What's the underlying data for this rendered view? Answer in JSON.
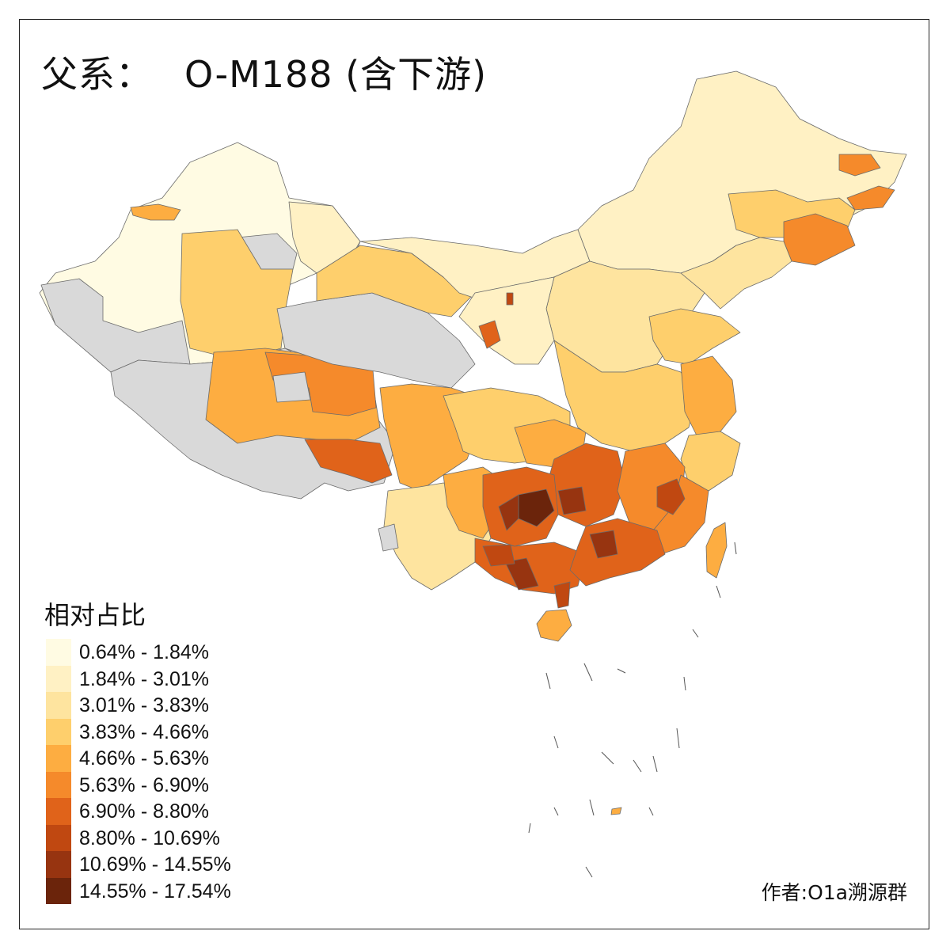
{
  "title": {
    "prefix": "父系：",
    "main": "O-M188 (含下游)"
  },
  "legend": {
    "title": "相对占比",
    "items": [
      {
        "label": "0.64% - 1.84%",
        "color": "#fffbe3"
      },
      {
        "label": "1.84% - 3.01%",
        "color": "#fff1c4"
      },
      {
        "label": "3.01% - 3.83%",
        "color": "#fee49f"
      },
      {
        "label": "3.83% - 4.66%",
        "color": "#fecf6c"
      },
      {
        "label": "4.66% - 5.63%",
        "color": "#fdad41"
      },
      {
        "label": "5.63% - 6.90%",
        "color": "#f58a2b"
      },
      {
        "label": "6.90% - 8.80%",
        "color": "#e0631a"
      },
      {
        "label": "8.80% - 10.69%",
        "color": "#c04811"
      },
      {
        "label": "10.69% - 14.55%",
        "color": "#973410"
      },
      {
        "label": "14.55% - 17.54%",
        "color": "#6b240b"
      }
    ]
  },
  "no_data_color": "#d9d9d9",
  "credit": "作者:O1a溯源群"
}
